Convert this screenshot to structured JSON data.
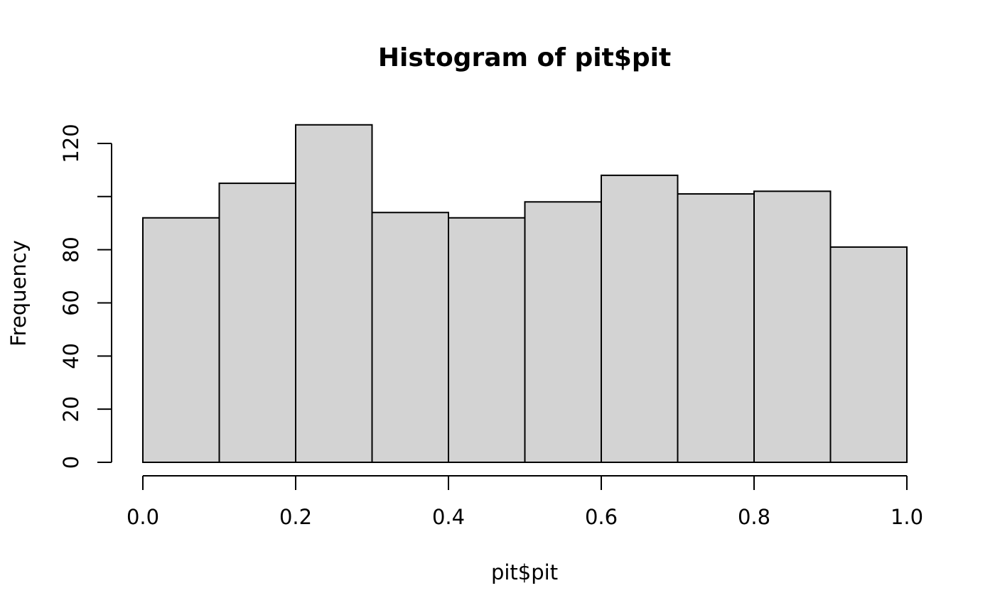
{
  "chart_data": {
    "type": "bar",
    "title": "Histogram of pit$pit",
    "xlabel": "pit$pit",
    "ylabel": "Frequency",
    "bins": [
      {
        "start": 0.0,
        "end": 0.1,
        "count": 92
      },
      {
        "start": 0.1,
        "end": 0.2,
        "count": 105
      },
      {
        "start": 0.2,
        "end": 0.3,
        "count": 127
      },
      {
        "start": 0.3,
        "end": 0.4,
        "count": 94
      },
      {
        "start": 0.4,
        "end": 0.5,
        "count": 92
      },
      {
        "start": 0.5,
        "end": 0.6,
        "count": 98
      },
      {
        "start": 0.6,
        "end": 0.7,
        "count": 108
      },
      {
        "start": 0.7,
        "end": 0.8,
        "count": 101
      },
      {
        "start": 0.8,
        "end": 0.9,
        "count": 102
      },
      {
        "start": 0.9,
        "end": 1.0,
        "count": 81
      }
    ],
    "xlim": [
      0.0,
      1.0
    ],
    "ylim": [
      0,
      120
    ],
    "x_ticks": [
      0.0,
      0.2,
      0.4,
      0.6,
      0.8,
      1.0
    ],
    "x_tick_labels": [
      "0.0",
      "0.2",
      "0.4",
      "0.6",
      "0.8",
      "1.0"
    ],
    "y_ticks": [
      0,
      20,
      40,
      60,
      80,
      100,
      120
    ],
    "y_tick_labels": [
      "0",
      "20",
      "40",
      "60",
      "80",
      "",
      "120"
    ],
    "grid": false,
    "bar_fill": "#d3d3d3",
    "bar_stroke": "#000000"
  }
}
